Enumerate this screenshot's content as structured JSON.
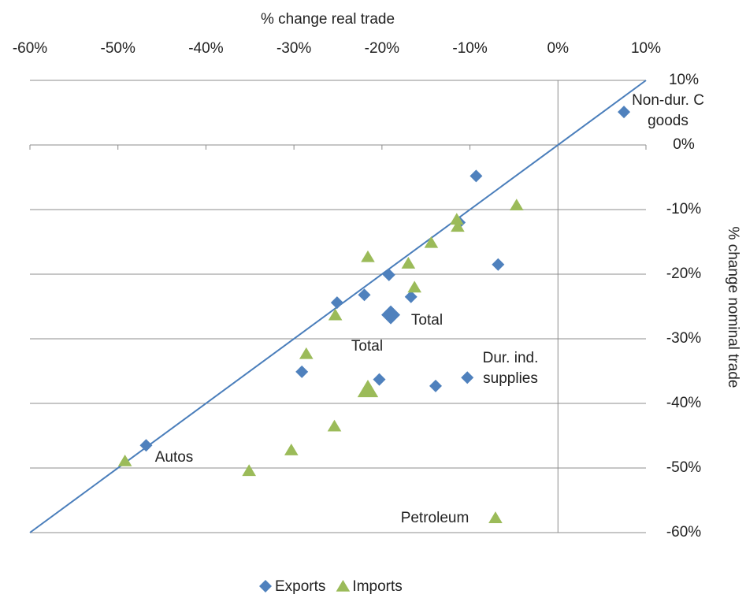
{
  "chart_data": {
    "type": "scatter",
    "x_label": "% change real trade",
    "y_label": "% change nominal trade",
    "xlim": [
      -60,
      10
    ],
    "ylim": [
      -60,
      10
    ],
    "xticks": [
      {
        "value": -60,
        "label": "-60%"
      },
      {
        "value": -50,
        "label": "-50%"
      },
      {
        "value": -40,
        "label": "-40%"
      },
      {
        "value": -30,
        "label": "-30%"
      },
      {
        "value": -20,
        "label": "-20%"
      },
      {
        "value": -10,
        "label": "-10%"
      },
      {
        "value": 0,
        "label": "0%"
      },
      {
        "value": 10,
        "label": "10%"
      }
    ],
    "yticks": [
      {
        "value": 10,
        "label": "10%"
      },
      {
        "value": 0,
        "label": "0%"
      },
      {
        "value": -10,
        "label": "-10%"
      },
      {
        "value": -20,
        "label": "-20%"
      },
      {
        "value": -30,
        "label": "-30%"
      },
      {
        "value": -40,
        "label": "-40%"
      },
      {
        "value": -50,
        "label": "-50%"
      },
      {
        "value": -60,
        "label": "-60%"
      }
    ],
    "grid": true,
    "legend": "bottom",
    "series": [
      {
        "name": "Exports",
        "color": "#4f81bd",
        "marker": "diamond",
        "x": [
          7.5,
          -9.3,
          -6.8,
          -11.2,
          -19.2,
          -22,
          -25.1,
          -16.7,
          -19,
          -13.9,
          -10.3,
          -29.1,
          -20.3,
          -46.8
        ],
        "y": [
          5.1,
          -4.8,
          -18.5,
          -12,
          -20.1,
          -23.2,
          -24.4,
          -23.5,
          -26.3,
          -37.3,
          -36,
          -35.1,
          -36.3,
          -46.5
        ]
      },
      {
        "name": "Imports",
        "color": "#9bbb59",
        "marker": "triangle",
        "x": [
          -4.7,
          -11.5,
          -11.4,
          -14.4,
          -17,
          -21.6,
          -16.3,
          -25.3,
          -28.6,
          -21.6,
          -25.4,
          -30.3,
          -35.1,
          -49.2,
          -7.1
        ],
        "y": [
          -9.3,
          -11.5,
          -12.6,
          -15.1,
          -18.3,
          -17.3,
          -22,
          -26.3,
          -32.3,
          -37.8,
          -43.5,
          -47.2,
          -50.4,
          -48.9,
          -57.7
        ]
      }
    ],
    "annotations": [
      {
        "lines": [
          "Non-dur. C",
          "goods"
        ]
      },
      {
        "lines": [
          "Total"
        ]
      },
      {
        "lines": [
          "Total"
        ]
      },
      {
        "lines": [
          "Dur. ind.",
          "supplies"
        ]
      },
      {
        "lines": [
          "Autos"
        ]
      },
      {
        "lines": [
          "Petroleum"
        ]
      }
    ]
  }
}
